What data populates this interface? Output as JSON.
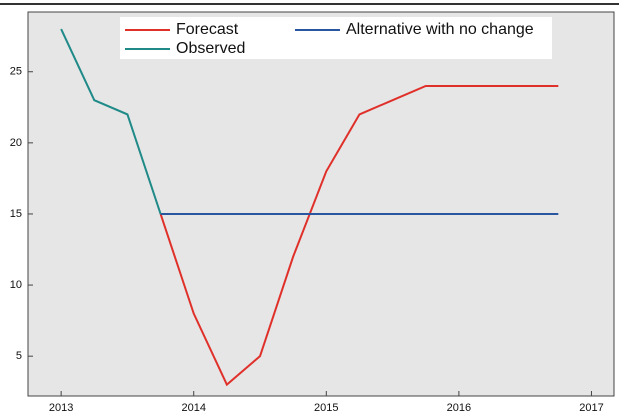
{
  "chart_data": {
    "type": "line",
    "series": [
      {
        "name": "Forecast",
        "color": "#e0302a",
        "x": [
          2013.75,
          2014,
          2014.25,
          2014.5,
          2014.75,
          2015,
          2015.25,
          2015.5,
          2015.75,
          2016,
          2016.25,
          2016.5,
          2016.75
        ],
        "values": [
          15,
          8,
          3,
          5,
          12,
          18,
          22,
          23,
          24,
          24,
          24,
          24,
          24
        ]
      },
      {
        "name": "Alternative with no change",
        "color": "#2a56a0",
        "x": [
          2013.75,
          2016.75
        ],
        "values": [
          15,
          15
        ]
      },
      {
        "name": "Observed",
        "color": "#1f8a88",
        "x": [
          2013,
          2013.25,
          2013.5,
          2013.75
        ],
        "values": [
          28,
          23,
          22,
          15
        ]
      }
    ],
    "xlim": [
      2012.75,
      2017.17
    ],
    "xticks": [
      2013,
      2014,
      2015,
      2016,
      2017
    ],
    "ylim": [
      2.2,
      29.2
    ],
    "yticks": [
      5,
      10,
      15,
      20,
      25
    ]
  }
}
